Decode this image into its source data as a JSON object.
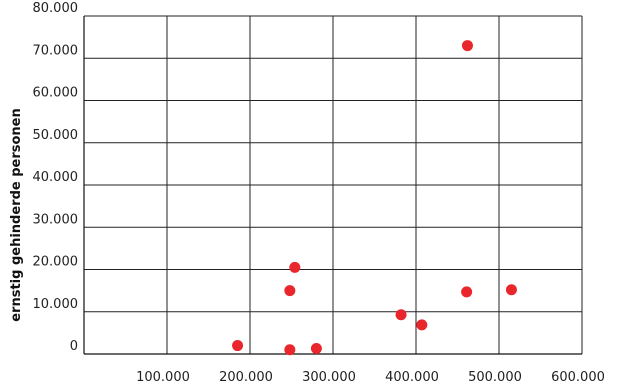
{
  "chart_data": {
    "type": "scatter",
    "title": "",
    "xlabel": "",
    "ylabel": "ernstig gehinderde personen",
    "xlim": [
      0,
      600000
    ],
    "ylim": [
      0,
      80000
    ],
    "x_ticks": [
      100000,
      200000,
      300000,
      400000,
      500000,
      600000
    ],
    "y_ticks": [
      0,
      10000,
      20000,
      30000,
      40000,
      50000,
      60000,
      70000,
      80000
    ],
    "x_tick_labels": [
      "100.000",
      "200.000",
      "300.000",
      "400.000",
      "500.000",
      "600.000"
    ],
    "y_tick_labels": [
      "0",
      "10.000",
      "20.000",
      "30.000",
      "40.000",
      "50.000",
      "60.000",
      "70.000",
      "80.000"
    ],
    "grid": true,
    "marker_color": "#e8262b",
    "points": [
      {
        "x": 185000,
        "y": 2000
      },
      {
        "x": 248000,
        "y": 1000
      },
      {
        "x": 248000,
        "y": 15000
      },
      {
        "x": 254000,
        "y": 20500
      },
      {
        "x": 280000,
        "y": 1300
      },
      {
        "x": 382000,
        "y": 9300
      },
      {
        "x": 407000,
        "y": 6900
      },
      {
        "x": 461000,
        "y": 14700
      },
      {
        "x": 462000,
        "y": 73000
      },
      {
        "x": 515000,
        "y": 15200
      }
    ]
  }
}
